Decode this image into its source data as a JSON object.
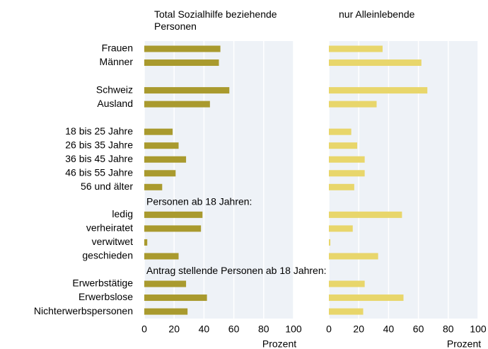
{
  "chart_data": {
    "type": "bar",
    "orientation": "horizontal",
    "categories": [
      "Frauen",
      "Männer",
      null,
      "Schweiz",
      "Ausland",
      null,
      "18 bis 25 Jahre",
      "26 bis 35 Jahre",
      "36 bis 45 Jahre",
      "46 bis 55 Jahre",
      "56 und älter",
      null,
      "ledig",
      "verheiratet",
      "verwitwet",
      "geschieden",
      null,
      "Erwerbstätige",
      "Erwerbslose",
      "Nichterwerbspersonen"
    ],
    "annotations": [
      {
        "text": "Personen ab 18 Jahren:",
        "category_index": 11
      },
      {
        "text": "Antrag stellende Personen ab 18 Jahren:",
        "category_index": 16
      }
    ],
    "series": [
      {
        "name": "Total Sozialhilfe beziehende Personen",
        "color": "#a99a2e",
        "values": [
          51,
          50,
          null,
          57,
          44,
          null,
          19,
          23,
          28,
          21,
          12,
          null,
          39,
          38,
          2,
          23,
          null,
          28,
          42,
          29
        ]
      },
      {
        "name": "nur Alleinlebende",
        "color": "#e8d66b",
        "values": [
          36,
          62,
          null,
          66,
          32,
          null,
          15,
          19,
          24,
          24,
          17,
          null,
          49,
          16,
          1,
          33,
          null,
          24,
          50,
          23
        ]
      }
    ],
    "xlim": [
      0,
      100
    ],
    "xticks": [
      0,
      20,
      40,
      60,
      80,
      100
    ],
    "xlabel": "Prozent",
    "grid": true
  }
}
